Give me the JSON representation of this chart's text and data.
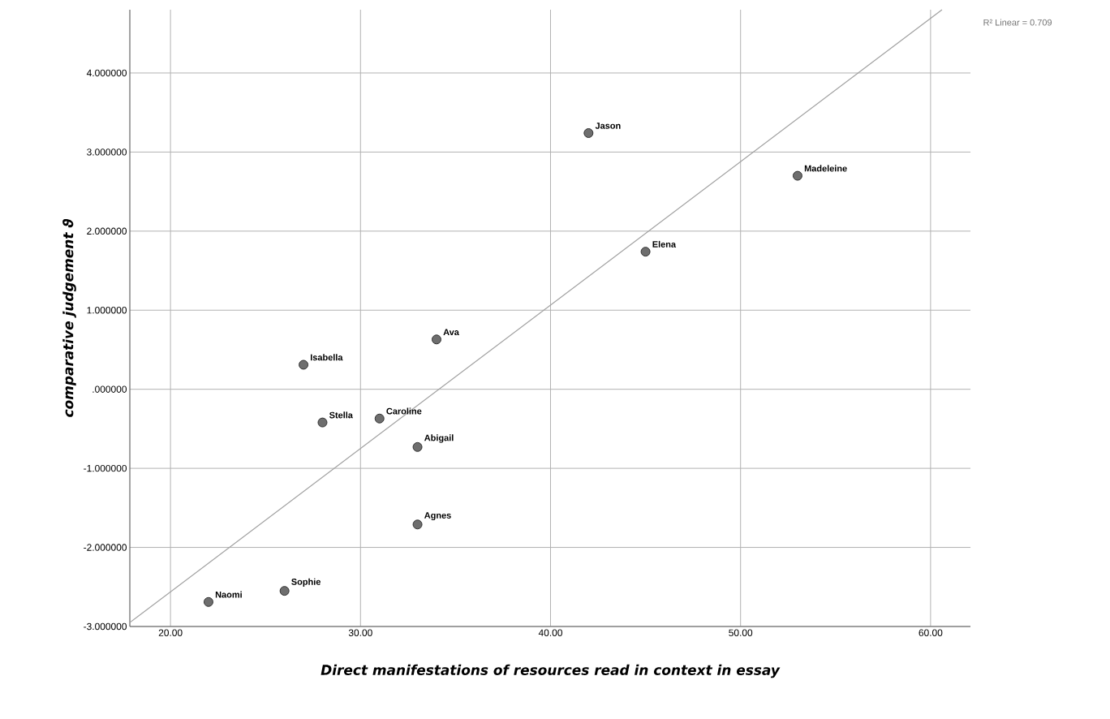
{
  "chart_data": {
    "type": "scatter",
    "xlabel": "Direct manifestations of resources read in context in essay",
    "ylabel": "comparative judgement ϑ",
    "xlim": [
      17.86,
      62.1
    ],
    "ylim": [
      -3,
      4.8
    ],
    "xticks": [
      {
        "value": 20,
        "label": "20.00"
      },
      {
        "value": 30,
        "label": "30.00"
      },
      {
        "value": 40,
        "label": "40.00"
      },
      {
        "value": 50,
        "label": "50.00"
      },
      {
        "value": 60,
        "label": "60.00"
      }
    ],
    "yticks": [
      {
        "value": -3,
        "label": "-3.000000"
      },
      {
        "value": -2,
        "label": "-2.000000"
      },
      {
        "value": -1,
        "label": "-1.000000"
      },
      {
        "value": 0,
        "label": ".000000"
      },
      {
        "value": 1,
        "label": "1.000000"
      },
      {
        "value": 2,
        "label": "2.000000"
      },
      {
        "value": 3,
        "label": "3.000000"
      },
      {
        "value": 4,
        "label": "4.000000"
      }
    ],
    "grid": true,
    "series": [
      {
        "marker": "circle",
        "color": "#6e6e6e",
        "x": [
          42,
          53,
          45,
          34,
          27,
          28,
          31,
          33,
          33,
          26,
          22
        ],
        "values": [
          3.24,
          2.7,
          1.74,
          0.63,
          0.31,
          -0.42,
          -0.37,
          -0.73,
          -1.71,
          -2.55,
          -2.69
        ]
      },
      {
        "type": "line",
        "marker": "none",
        "color": "#a0a0a0",
        "x": [
          17.86,
          60.6
        ],
        "values": [
          -2.95,
          4.8
        ]
      }
    ],
    "annotations": [
      "R² Linear = 0.709",
      {
        "text": "Jason",
        "x": 42,
        "y": 3.24
      },
      {
        "text": "Madeleine",
        "x": 53,
        "y": 2.7
      },
      {
        "text": "Elena",
        "x": 45,
        "y": 1.74
      },
      {
        "text": "Ava",
        "x": 34,
        "y": 0.63
      },
      {
        "text": "Isabella",
        "x": 27,
        "y": 0.31
      },
      {
        "text": "Stella",
        "x": 28,
        "y": -0.42
      },
      {
        "text": "Caroline",
        "x": 31,
        "y": -0.37
      },
      {
        "text": "Abigail",
        "x": 33,
        "y": -0.73
      },
      {
        "text": "Agnes",
        "x": 33,
        "y": -1.71
      },
      {
        "text": "Sophie",
        "x": 26,
        "y": -2.55
      },
      {
        "text": "Naomi",
        "x": 22,
        "y": -2.69
      }
    ]
  }
}
